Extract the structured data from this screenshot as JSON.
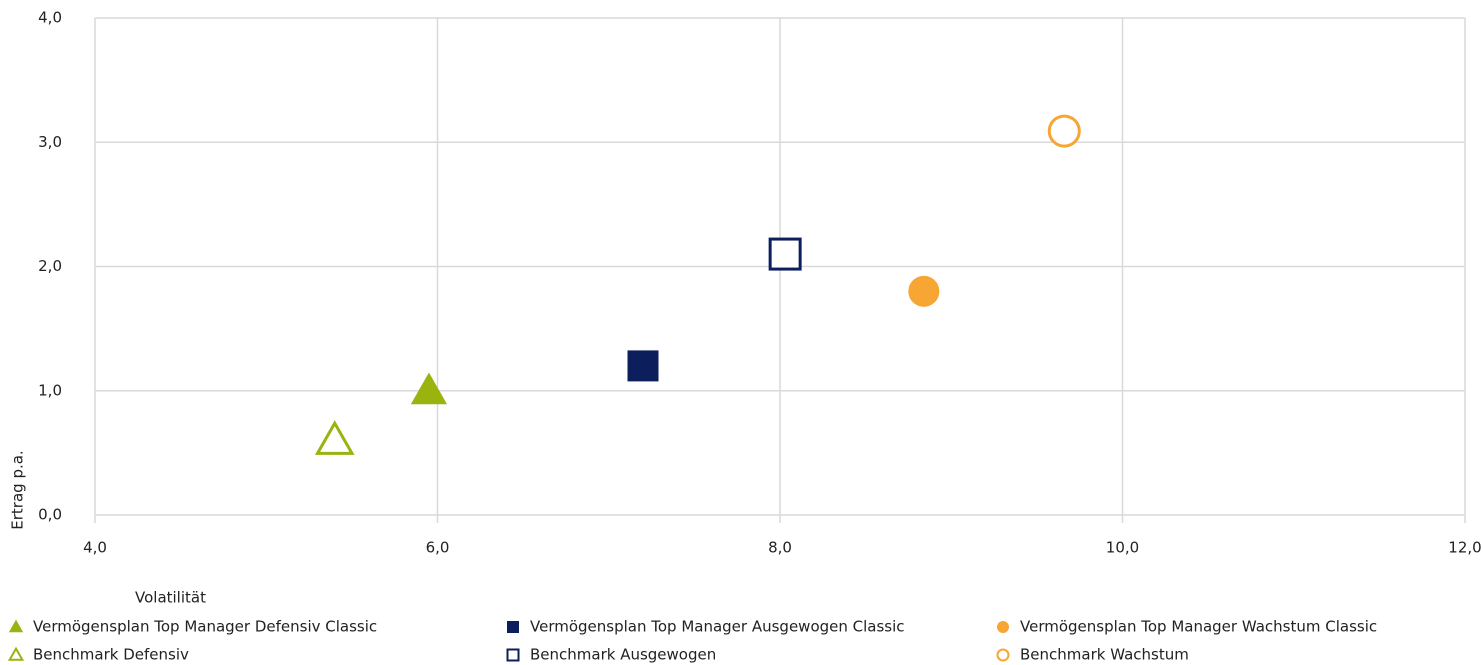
{
  "chart_data": {
    "type": "scatter",
    "x_label": "Volatilität",
    "y_label": "Ertrag p.a.",
    "xlim": [
      4,
      12
    ],
    "ylim": [
      0,
      4
    ],
    "xticks": [
      {
        "value": 4,
        "label": "4,0"
      },
      {
        "value": 6,
        "label": "6,0"
      },
      {
        "value": 8,
        "label": "8,0"
      },
      {
        "value": 10,
        "label": "10,0"
      },
      {
        "value": 12,
        "label": "12,0"
      }
    ],
    "yticks": [
      {
        "value": 0,
        "label": "0,0"
      },
      {
        "value": 1,
        "label": "1,0"
      },
      {
        "value": 2,
        "label": "2,0"
      },
      {
        "value": 3,
        "label": "3,0"
      },
      {
        "value": 4,
        "label": "4,0"
      }
    ],
    "grid": true,
    "legend": "bottom",
    "series": [
      {
        "name": "Vermögensplan Top Manager Defensiv Classic",
        "color": "#9ab30f",
        "marker": "triangle",
        "filled": true,
        "x": [
          5.95
        ],
        "values": [
          1.0
        ]
      },
      {
        "name": "Benchmark Defensiv",
        "color": "#9ab30f",
        "marker": "triangle",
        "filled": false,
        "x": [
          5.4
        ],
        "values": [
          0.6
        ]
      },
      {
        "name": "Vermögensplan Top Manager Ausgewogen Classic",
        "color": "#0c1f5c",
        "marker": "square",
        "filled": true,
        "x": [
          7.2
        ],
        "values": [
          1.2
        ]
      },
      {
        "name": "Benchmark Ausgewogen",
        "color": "#0c1f5c",
        "marker": "square",
        "filled": false,
        "x": [
          8.03
        ],
        "values": [
          2.1
        ]
      },
      {
        "name": "Vermögensplan Top Manager Wachstum Classic",
        "color": "#f7a533",
        "marker": "circle",
        "filled": true,
        "x": [
          8.84
        ],
        "values": [
          1.8
        ]
      },
      {
        "name": "Benchmark Wachstum",
        "color": "#f7a533",
        "marker": "circle",
        "filled": false,
        "x": [
          9.66
        ],
        "values": [
          3.09
        ]
      }
    ]
  }
}
